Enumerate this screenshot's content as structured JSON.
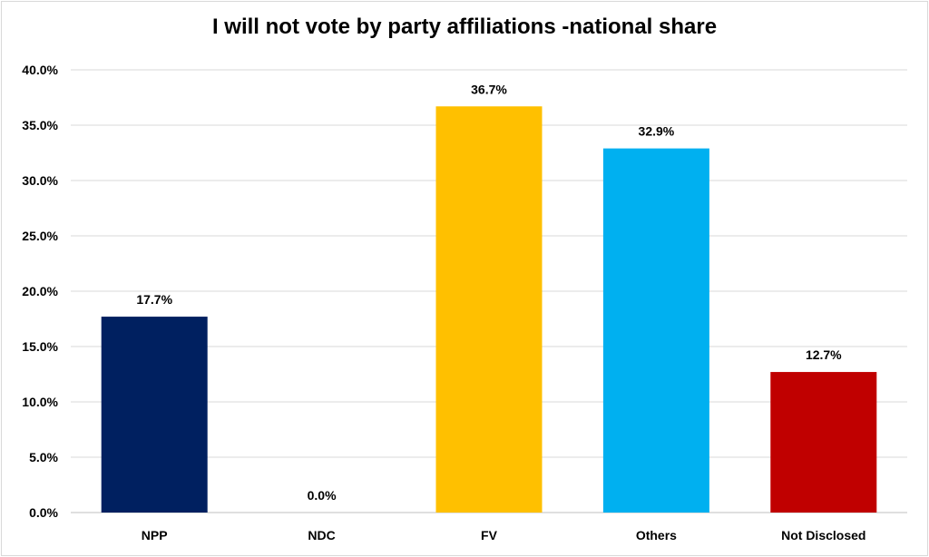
{
  "chart_data": {
    "type": "bar",
    "title": "I will not vote by party affiliations -national share",
    "categories": [
      "NPP",
      "NDC",
      "FV",
      "Others",
      "Not Disclosed"
    ],
    "values": [
      17.7,
      0.0,
      36.7,
      32.9,
      12.7
    ],
    "data_labels": [
      "17.7%",
      "0.0%",
      "36.7%",
      "32.9%",
      "12.7%"
    ],
    "colors": [
      "#002060",
      "#4472c4",
      "#ffc000",
      "#00b0f0",
      "#c00000"
    ],
    "ylim": [
      0,
      40
    ],
    "yticks": [
      0,
      5,
      10,
      15,
      20,
      25,
      30,
      35,
      40
    ],
    "ytick_labels": [
      "0.0%",
      "5.0%",
      "10.0%",
      "15.0%",
      "20.0%",
      "25.0%",
      "30.0%",
      "35.0%",
      "40.0%"
    ],
    "grid": true,
    "xlabel": "",
    "ylabel": ""
  }
}
